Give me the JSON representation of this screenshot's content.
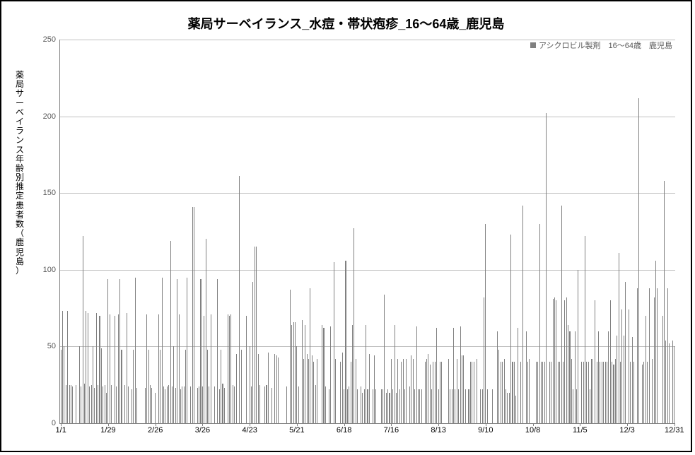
{
  "chart": {
    "type": "bar",
    "title": "薬局サーベイランス_水痘・帯状疱疹_16～64歳_鹿児島",
    "title_fontsize": 18,
    "yaxis_label": "薬局サーベイランス年齢別推定患者数（鹿児島）",
    "legend_label": "アシクロビル製剤　16～64歳　鹿児島",
    "background_color": "#ffffff",
    "frame_border_color": "#000000",
    "axis_color": "#808080",
    "grid_color": "#bfbfbf",
    "tick_color": "#595959",
    "bar_color": "#808080",
    "ylim": [
      0,
      250
    ],
    "ytick_step": 50,
    "yticks": [
      0,
      50,
      100,
      150,
      200,
      250
    ],
    "xticks": [
      "1/1",
      "1/29",
      "2/26",
      "3/26",
      "4/23",
      "5/21",
      "6/18",
      "7/16",
      "8/13",
      "9/10",
      "10/8",
      "11/5",
      "12/3",
      "12/31"
    ],
    "bar_width_ratio": 0.45,
    "values": [
      48,
      73,
      50,
      25,
      73,
      25,
      25,
      24,
      0,
      25,
      0,
      50,
      24,
      122,
      26,
      73,
      72,
      24,
      25,
      50,
      23,
      72,
      25,
      70,
      49,
      24,
      25,
      20,
      94,
      71,
      25,
      0,
      70,
      24,
      71,
      94,
      48,
      0,
      25,
      72,
      24,
      0,
      22,
      48,
      95,
      23,
      0,
      0,
      0,
      0,
      23,
      71,
      48,
      25,
      23,
      0,
      20,
      0,
      71,
      48,
      95,
      24,
      22,
      24,
      25,
      119,
      24,
      50,
      23,
      94,
      71,
      22,
      24,
      24,
      48,
      95,
      0,
      24,
      141,
      141,
      0,
      23,
      24,
      94,
      24,
      70,
      120,
      48,
      24,
      71,
      0,
      24,
      0,
      94,
      22,
      48,
      26,
      23,
      0,
      71,
      70,
      71,
      25,
      24,
      45,
      0,
      161,
      48,
      0,
      0,
      70,
      0,
      50,
      24,
      92,
      115,
      115,
      45,
      25,
      0,
      0,
      24,
      25,
      46,
      0,
      23,
      0,
      45,
      44,
      43,
      0,
      0,
      0,
      0,
      24,
      0,
      87,
      64,
      66,
      66,
      50,
      24,
      0,
      67,
      42,
      64,
      45,
      42,
      88,
      44,
      40,
      25,
      42,
      0,
      0,
      64,
      62,
      24,
      0,
      22,
      63,
      0,
      105,
      42,
      0,
      0,
      40,
      46,
      22,
      106,
      22,
      24,
      40,
      64,
      127,
      42,
      22,
      0,
      24,
      20,
      22,
      64,
      22,
      45,
      0,
      22,
      44,
      22,
      0,
      0,
      22,
      22,
      84,
      20,
      22,
      20,
      42,
      22,
      64,
      20,
      42,
      22,
      40,
      42,
      22,
      42,
      0,
      24,
      44,
      42,
      22,
      63,
      22,
      22,
      22,
      0,
      40,
      42,
      45,
      38,
      22,
      40,
      40,
      62,
      22,
      40,
      40,
      0,
      0,
      0,
      42,
      22,
      22,
      62,
      22,
      42,
      22,
      63,
      44,
      44,
      22,
      0,
      22,
      40,
      40,
      40,
      0,
      42,
      0,
      22,
      22,
      82,
      130,
      22,
      0,
      0,
      22,
      0,
      0,
      60,
      48,
      40,
      40,
      42,
      22,
      20,
      20,
      123,
      40,
      40,
      18,
      62,
      0,
      40,
      142,
      0,
      60,
      40,
      42,
      0,
      0,
      0,
      40,
      40,
      130,
      40,
      40,
      40,
      202,
      0,
      40,
      40,
      81,
      82,
      80,
      40,
      40,
      142,
      40,
      80,
      82,
      64,
      60,
      42,
      22,
      60,
      22,
      100,
      0,
      40,
      40,
      122,
      40,
      40,
      22,
      42,
      0,
      80,
      40,
      60,
      40,
      40,
      40,
      40,
      40,
      60,
      80,
      40,
      38,
      42,
      57,
      111,
      40,
      74,
      57,
      92,
      0,
      74,
      40,
      56,
      40,
      0,
      88,
      212,
      0,
      38,
      40,
      70,
      40,
      88,
      0,
      42,
      82,
      106,
      88,
      0,
      0,
      70,
      158,
      54,
      88,
      52,
      0,
      54,
      50
    ]
  }
}
